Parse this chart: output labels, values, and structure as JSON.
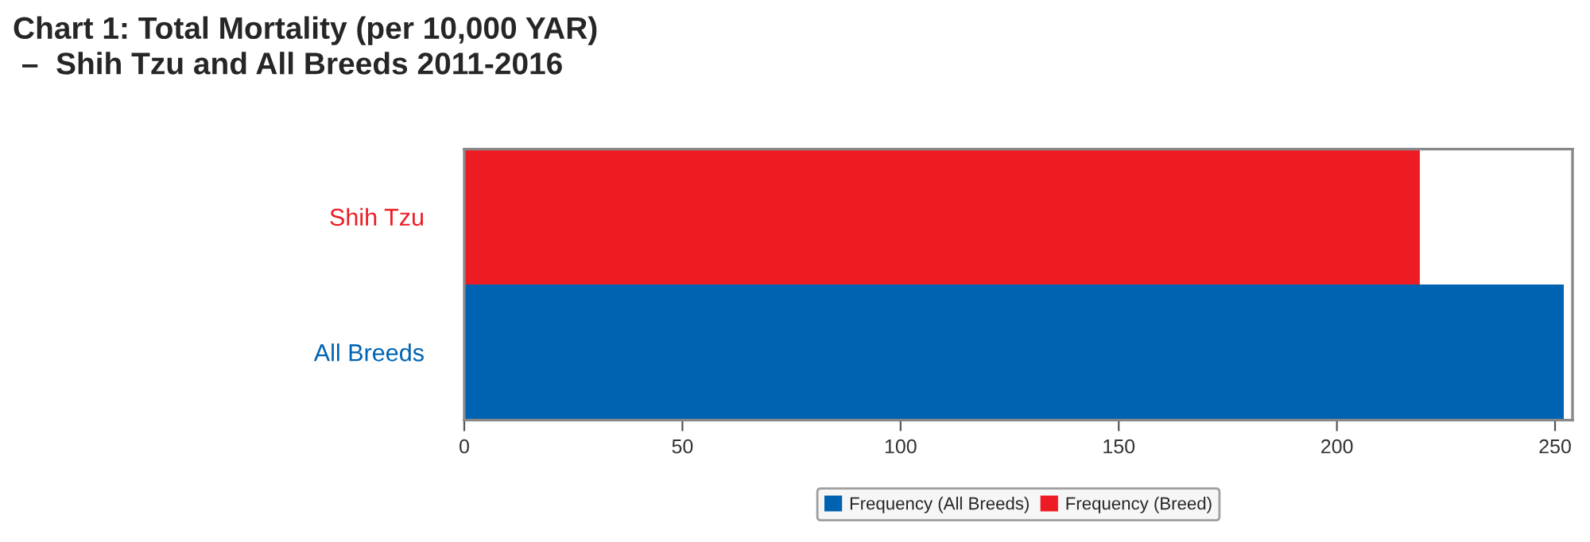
{
  "chart_data": {
    "type": "bar",
    "orientation": "horizontal",
    "title": "Chart 1: Total Mortality (per 10,000 YAR)\n –  Shih Tzu and All Breeds 2011-2016",
    "categories": [
      "Shih Tzu",
      "All Breeds"
    ],
    "series": [
      {
        "name": "Frequency (All Breeds)",
        "color": "#0063b1",
        "values": [
          null,
          252
        ]
      },
      {
        "name": "Frequency (Breed)",
        "color": "#ed1c24",
        "values": [
          219,
          null
        ]
      }
    ],
    "xlim": [
      0,
      254
    ],
    "xticks": [
      0,
      50,
      100,
      150,
      200,
      250
    ],
    "grid": false,
    "legend": "bottom"
  }
}
